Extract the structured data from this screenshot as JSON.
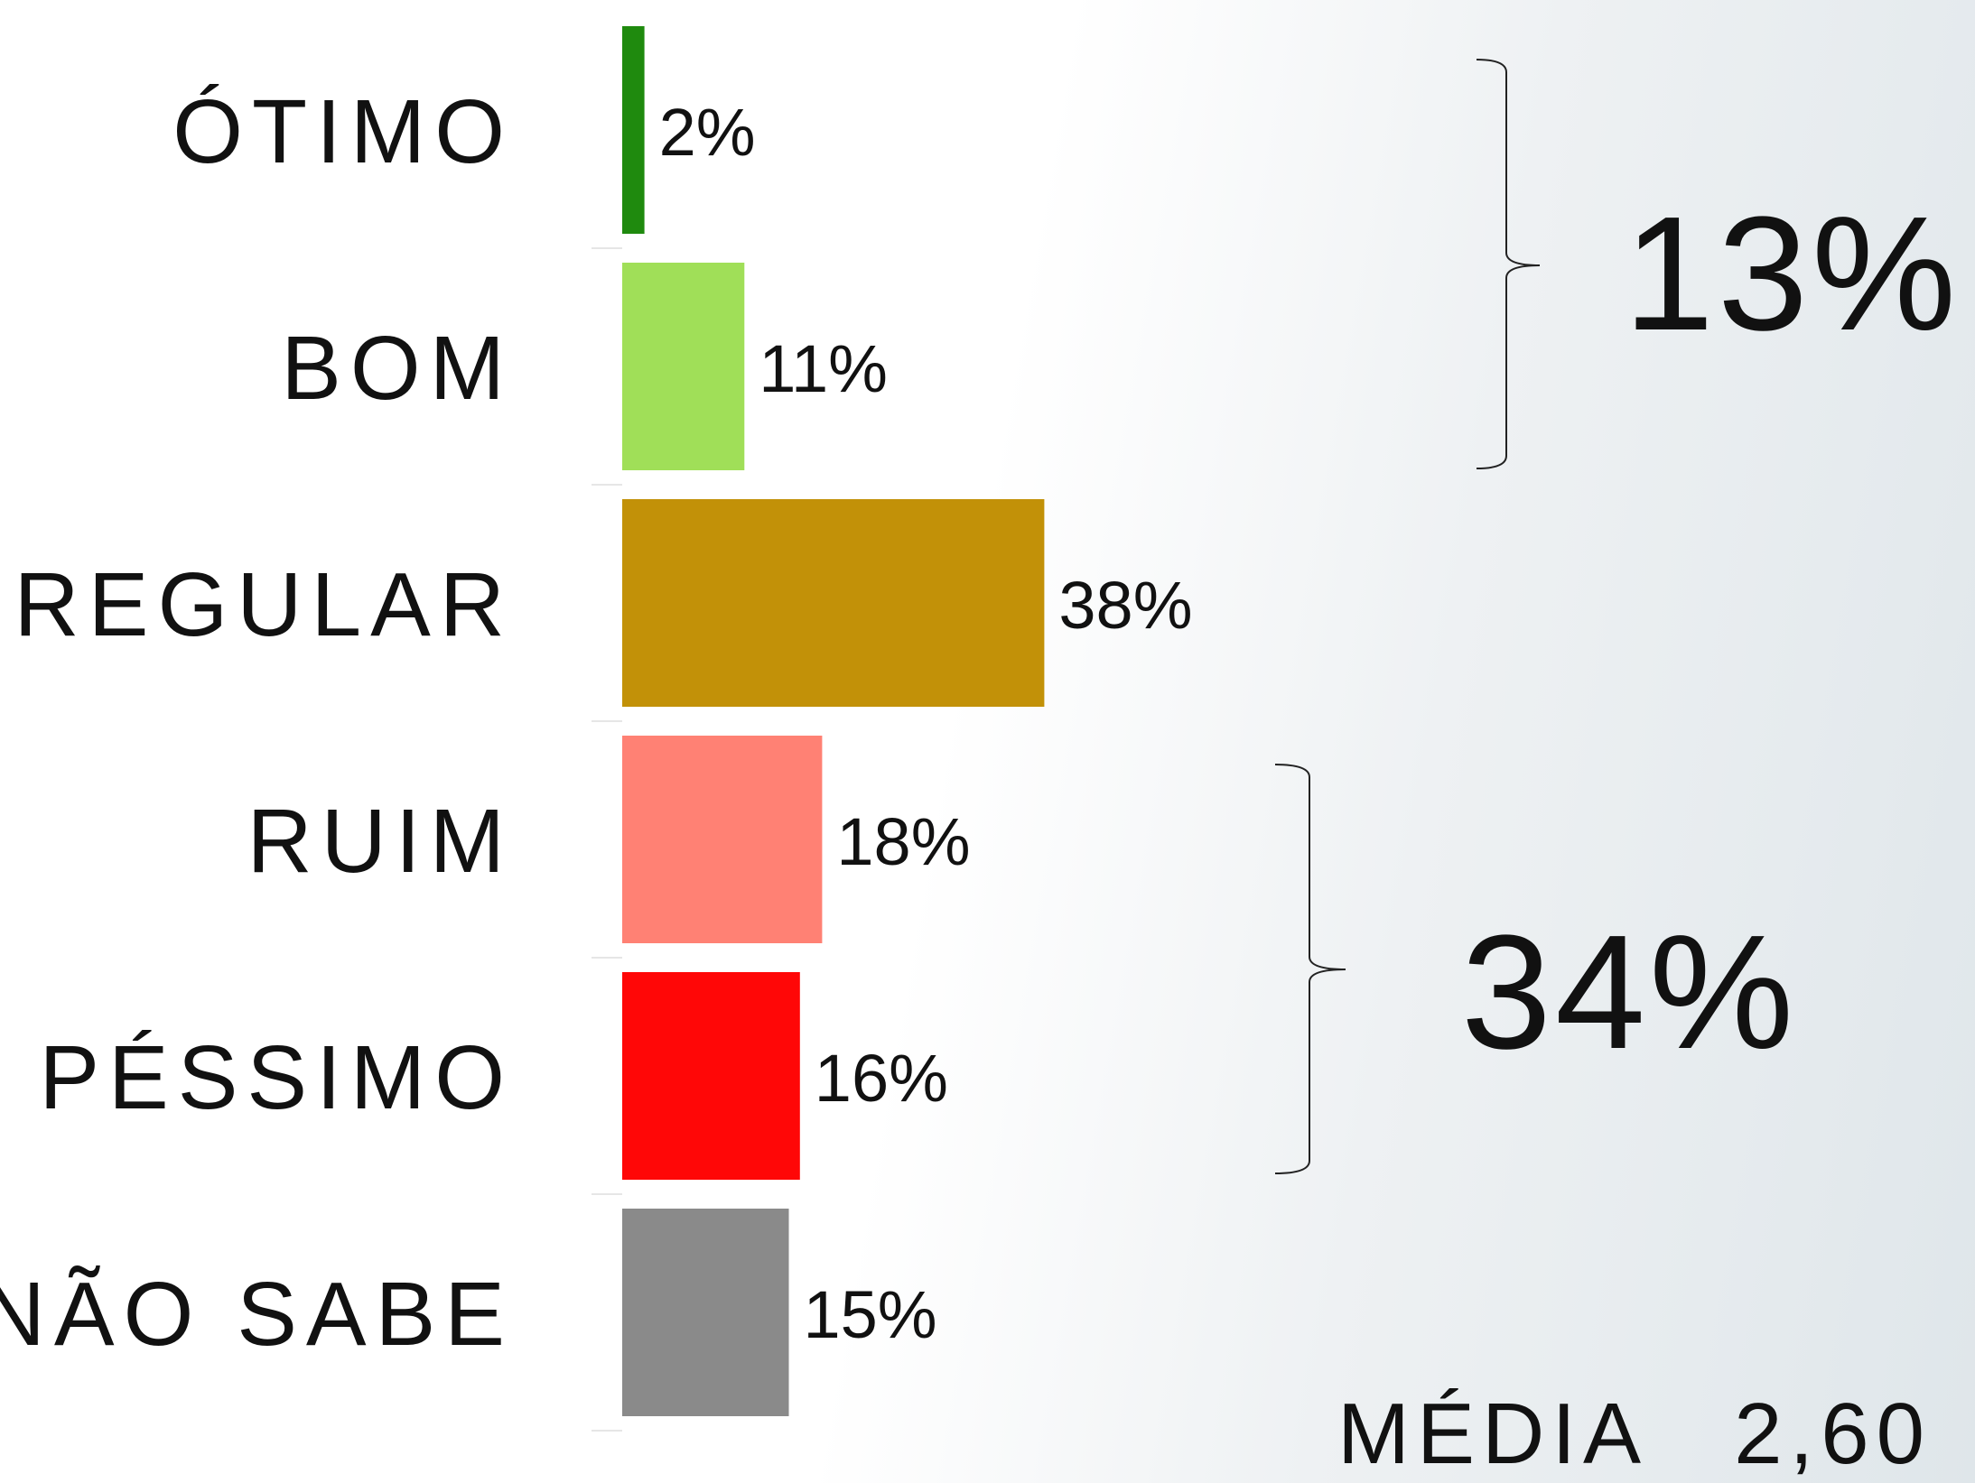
{
  "chart_data": {
    "type": "hbar",
    "categories": [
      "ÓTIMO",
      "BOM",
      "REGULAR",
      "RUIM",
      "PÉSSIMO",
      "NÃO SABE"
    ],
    "values": [
      2,
      11,
      38,
      18,
      16,
      15
    ],
    "value_labels": [
      "2%",
      "11%",
      "38%",
      "18%",
      "16%",
      "15%"
    ],
    "colors": [
      "#1f8a0e",
      "#a0df58",
      "#c29108",
      "#ff8174",
      "#ff0707",
      "#8a8a8a"
    ],
    "annotations": [
      {
        "text": "13%"
      },
      {
        "text": "34%"
      }
    ],
    "average": {
      "label": "MÉDIA",
      "value": "2,60"
    }
  }
}
